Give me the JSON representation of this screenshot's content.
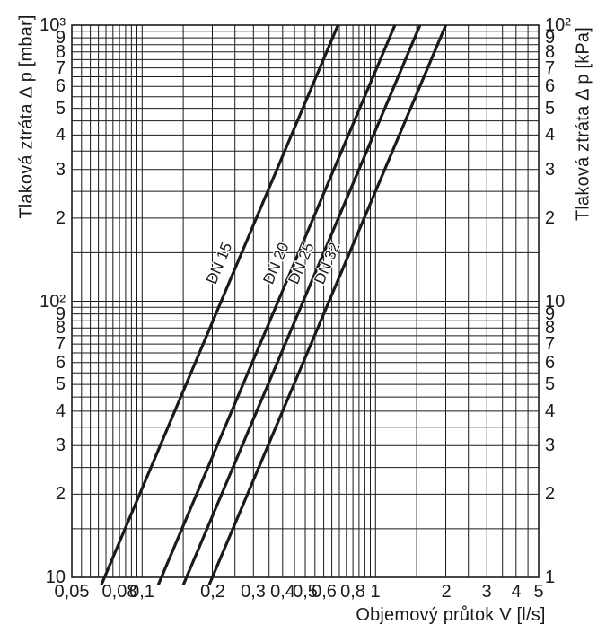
{
  "chart_data": {
    "type": "line",
    "scale": "log-log",
    "grid": "on",
    "title": "",
    "series_color": "#1a1a1a",
    "series_label_at_mbar": 130,
    "x_axis": {
      "label": "Objemový průtok V [l/s]",
      "unit": "l/s",
      "range": [
        0.05,
        5
      ],
      "ticks": [
        {
          "v": 0.05,
          "label": "0,05"
        },
        {
          "v": 0.08,
          "label": "0,08"
        },
        {
          "v": 0.1,
          "label": "0,1"
        },
        {
          "v": 0.2,
          "label": "0,2"
        },
        {
          "v": 0.3,
          "label": "0,3"
        },
        {
          "v": 0.4,
          "label": "0,4"
        },
        {
          "v": 0.5,
          "label": "0,5"
        },
        {
          "v": 0.6,
          "label": "0,6"
        },
        {
          "v": 0.8,
          "label": "0,8"
        },
        {
          "v": 1,
          "label": "1"
        },
        {
          "v": 2,
          "label": "2"
        },
        {
          "v": 3,
          "label": "3"
        },
        {
          "v": 4,
          "label": "4"
        },
        {
          "v": 5,
          "label": "5"
        }
      ],
      "gridlines": [
        0.05,
        0.055,
        0.06,
        0.065,
        0.07,
        0.075,
        0.08,
        0.085,
        0.09,
        0.095,
        0.1,
        0.15,
        0.2,
        0.25,
        0.3,
        0.35,
        0.4,
        0.45,
        0.5,
        0.55,
        0.6,
        0.65,
        0.7,
        0.75,
        0.8,
        0.85,
        0.9,
        0.95,
        1,
        1.5,
        2,
        2.5,
        3,
        3.5,
        4,
        4.5,
        5
      ]
    },
    "y_axis_left": {
      "label": "Tlaková ztráta Δ p [mbar]",
      "unit": "mbar",
      "range": [
        10,
        1000
      ],
      "ticks": [
        {
          "v": 1000,
          "label": "10³"
        },
        {
          "v": 900,
          "label": "9"
        },
        {
          "v": 800,
          "label": "8"
        },
        {
          "v": 700,
          "label": "7"
        },
        {
          "v": 600,
          "label": "6"
        },
        {
          "v": 500,
          "label": "5"
        },
        {
          "v": 400,
          "label": "4"
        },
        {
          "v": 300,
          "label": "3"
        },
        {
          "v": 200,
          "label": "2"
        },
        {
          "v": 100,
          "label": "10²"
        },
        {
          "v": 90,
          "label": "9"
        },
        {
          "v": 80,
          "label": "8"
        },
        {
          "v": 70,
          "label": "7"
        },
        {
          "v": 60,
          "label": "6"
        },
        {
          "v": 50,
          "label": "5"
        },
        {
          "v": 40,
          "label": "4"
        },
        {
          "v": 30,
          "label": "3"
        },
        {
          "v": 20,
          "label": "2"
        },
        {
          "v": 10,
          "label": "10"
        }
      ],
      "gridlines": [
        10,
        15,
        20,
        25,
        30,
        35,
        40,
        45,
        50,
        55,
        60,
        65,
        70,
        75,
        80,
        85,
        90,
        95,
        100,
        150,
        200,
        250,
        300,
        350,
        400,
        450,
        500,
        550,
        600,
        650,
        700,
        750,
        800,
        850,
        900,
        950,
        1000
      ]
    },
    "y_axis_right": {
      "label": "Tlaková ztráta Δ p [kPa]",
      "unit": "kPa",
      "range": [
        1,
        100
      ],
      "ticks": [
        {
          "v": 100,
          "label": "10²"
        },
        {
          "v": 90,
          "label": "9"
        },
        {
          "v": 80,
          "label": "8"
        },
        {
          "v": 70,
          "label": "7"
        },
        {
          "v": 60,
          "label": "6"
        },
        {
          "v": 50,
          "label": "5"
        },
        {
          "v": 40,
          "label": "4"
        },
        {
          "v": 30,
          "label": "3"
        },
        {
          "v": 20,
          "label": "2"
        },
        {
          "v": 10,
          "label": "10"
        },
        {
          "v": 9,
          "label": "9"
        },
        {
          "v": 8,
          "label": "8"
        },
        {
          "v": 7,
          "label": "7"
        },
        {
          "v": 6,
          "label": "6"
        },
        {
          "v": 5,
          "label": "5"
        },
        {
          "v": 4,
          "label": "4"
        },
        {
          "v": 3,
          "label": "3"
        },
        {
          "v": 2,
          "label": "2"
        },
        {
          "v": 1,
          "label": "1"
        }
      ]
    },
    "series": [
      {
        "name": "DN 15",
        "points_l_per_s_vs_mbar": [
          [
            0.069,
            10
          ],
          [
            0.69,
            1000
          ]
        ]
      },
      {
        "name": "DN 20",
        "points_l_per_s_vs_mbar": [
          [
            0.121,
            10
          ],
          [
            1.21,
            1000
          ]
        ]
      },
      {
        "name": "DN 25",
        "points_l_per_s_vs_mbar": [
          [
            0.155,
            10
          ],
          [
            1.55,
            1000
          ]
        ]
      },
      {
        "name": "DN 32",
        "points_l_per_s_vs_mbar": [
          [
            0.2,
            10
          ],
          [
            2.0,
            1000
          ]
        ]
      }
    ]
  }
}
